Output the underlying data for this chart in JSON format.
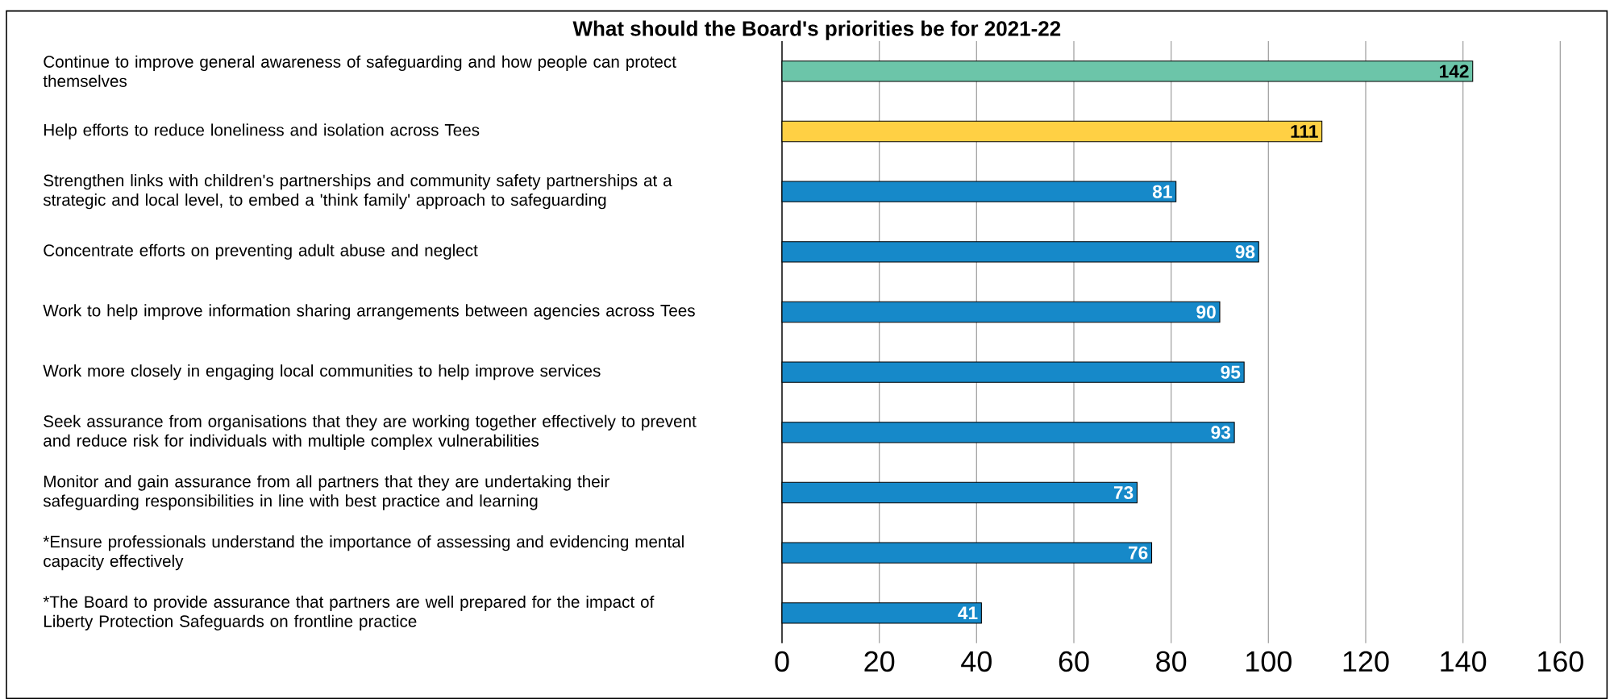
{
  "chart_data": {
    "type": "bar",
    "orientation": "horizontal",
    "title": "What should the Board's priorities be for 2021-22",
    "categories": [
      "Continue to improve general awareness of safeguarding and how people can protect themselves",
      "Help efforts to reduce loneliness and isolation across Tees",
      "Strengthen links with children's partnerships and community safety partnerships at a strategic and local level, to embed a 'think family' approach to safeguarding",
      "Concentrate efforts on preventing adult abuse and neglect",
      "Work to help improve information sharing arrangements between agencies across Tees",
      "Work more closely in engaging local communities to help improve services",
      "Seek assurance from organisations that they are working together effectively to prevent and reduce risk for individuals with multiple complex vulnerabilities",
      "Monitor and gain assurance from all partners that they are undertaking their safeguarding responsibilities in line with best practice and learning",
      "*Ensure professionals understand the importance of assessing and evidencing mental capacity effectively",
      "*The Board to provide assurance that partners are well prepared for the impact of Liberty Protection Safeguards on frontline practice"
    ],
    "values": [
      142,
      111,
      81,
      98,
      90,
      95,
      93,
      73,
      76,
      41
    ],
    "colors": [
      "#6cc5a9",
      "#ffd044",
      "#1689c9",
      "#1689c9",
      "#1689c9",
      "#1689c9",
      "#1689c9",
      "#1689c9",
      "#1689c9",
      "#1689c9"
    ],
    "data_labels": true,
    "xlim": [
      0,
      160
    ],
    "xticks": [
      0,
      20,
      40,
      60,
      80,
      100,
      120,
      140,
      160
    ],
    "grid": "x"
  }
}
